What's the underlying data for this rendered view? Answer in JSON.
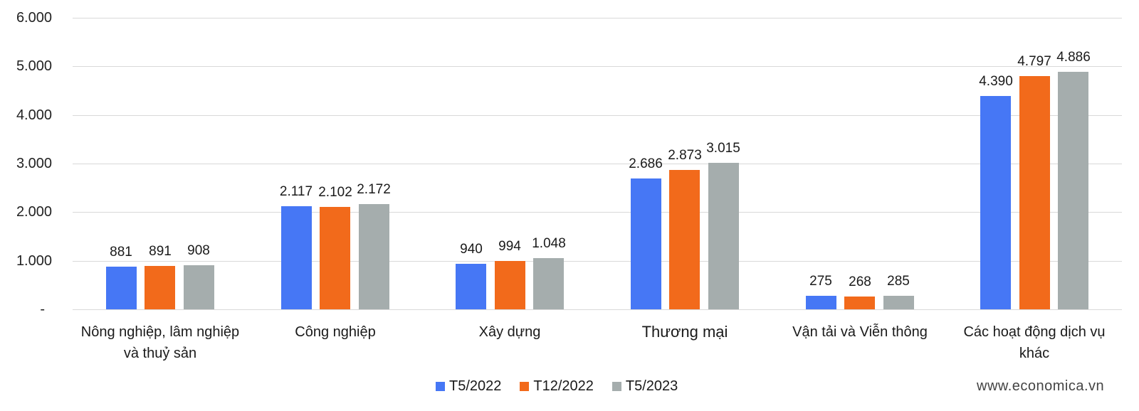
{
  "chart_data": {
    "type": "bar",
    "title": "",
    "xlabel": "",
    "ylabel": "",
    "ylim": [
      0,
      6000
    ],
    "yticks": [
      0,
      1000,
      2000,
      3000,
      4000,
      5000,
      6000
    ],
    "ytick_labels": [
      "-",
      "1.000",
      "2.000",
      "3.000",
      "4.000",
      "5.000",
      "6.000"
    ],
    "grid": true,
    "legend_position": "bottom",
    "categories": [
      "Nông nghiệp, lâm nghiệp và thuỷ sản",
      "Công nghiệp",
      "Xây dựng",
      "Thương mại",
      "Vận tải và Viễn thông",
      "Các hoạt động dịch vụ khác"
    ],
    "category_lines": [
      [
        "Nông nghiệp, lâm nghiệp",
        "và thuỷ sản"
      ],
      [
        "Công nghiệp"
      ],
      [
        "Xây dựng"
      ],
      [
        "Thương mại"
      ],
      [
        "Vận tải và Viễn thông"
      ],
      [
        "Các hoạt động dịch vụ",
        "khác"
      ]
    ],
    "series": [
      {
        "name": "T5/2022",
        "color": "#4677F5",
        "values": [
          881,
          2117,
          940,
          2686,
          275,
          4390
        ],
        "labels": [
          "881",
          "2.117",
          "940",
          "2.686",
          "275",
          "4.390"
        ]
      },
      {
        "name": "T12/2022",
        "color": "#F26A1B",
        "values": [
          891,
          2102,
          994,
          2873,
          268,
          4797
        ],
        "labels": [
          "891",
          "2.102",
          "994",
          "2.873",
          "268",
          "4.797"
        ]
      },
      {
        "name": "T5/2023",
        "color": "#A5ADAD",
        "values": [
          908,
          2172,
          1048,
          3015,
          285,
          4886
        ],
        "labels": [
          "908",
          "2.172",
          "1.048",
          "3.015",
          "285",
          "4.886"
        ]
      }
    ]
  },
  "legend": {
    "items": [
      {
        "label": "T5/2022",
        "color": "#4677F5"
      },
      {
        "label": "T12/2022",
        "color": "#F26A1B"
      },
      {
        "label": "T5/2023",
        "color": "#A5ADAD"
      }
    ]
  },
  "watermark": "www.economica.vn",
  "colors": {
    "grid": "#d9d9d9",
    "text": "#1a1a1a"
  }
}
